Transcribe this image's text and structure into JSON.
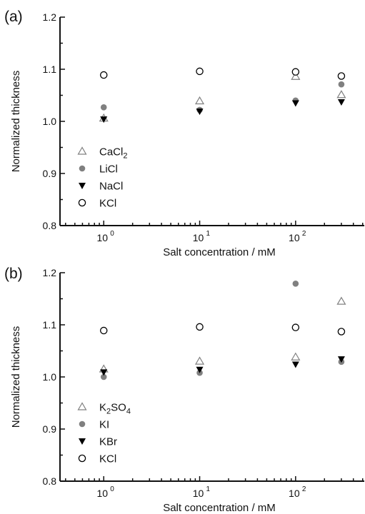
{
  "chart_data": [
    {
      "type": "scatter",
      "panel_label": "(a)",
      "xlabel": "Salt concentration / mM",
      "ylabel": "Normalized thickness",
      "xscale": "log",
      "xlim": [
        0.35,
        520
      ],
      "ylim": [
        0.8,
        1.2
      ],
      "x_ticks": [
        {
          "value": 1,
          "base": "10",
          "exp": "0"
        },
        {
          "value": 10,
          "base": "10",
          "exp": "1"
        },
        {
          "value": 100,
          "base": "10",
          "exp": "2"
        }
      ],
      "y_ticks": [
        "0.8",
        "0.9",
        "1.0",
        "1.1",
        "1.2"
      ],
      "grid": false,
      "legend_position": "bottom-left",
      "series": [
        {
          "name": "CaCl2",
          "name_main": "CaCl",
          "name_sub": "2",
          "marker": "triangle-up-open",
          "color": "#808080",
          "x": [
            1,
            10,
            100,
            300
          ],
          "y": [
            1.006,
            1.039,
            1.086,
            1.051
          ]
        },
        {
          "name": "LiCl",
          "name_main": "LiCl",
          "name_sub": "",
          "marker": "circle-filled",
          "color": "#808080",
          "x": [
            1,
            10,
            100,
            300
          ],
          "y": [
            1.027,
            1.022,
            1.04,
            1.071
          ]
        },
        {
          "name": "NaCl",
          "name_main": "NaCl",
          "name_sub": "",
          "marker": "triangle-down-filled",
          "color": "#000000",
          "x": [
            1,
            10,
            100,
            300
          ],
          "y": [
            1.004,
            1.019,
            1.035,
            1.037
          ]
        },
        {
          "name": "KCl",
          "name_main": "KCl",
          "name_sub": "",
          "marker": "circle-open",
          "color": "#000000",
          "x": [
            1,
            10,
            100,
            300
          ],
          "y": [
            1.089,
            1.096,
            1.095,
            1.087
          ]
        }
      ]
    },
    {
      "type": "scatter",
      "panel_label": "(b)",
      "xlabel": "Salt concentration / mM",
      "ylabel": "Normalized thickness",
      "xscale": "log",
      "xlim": [
        0.35,
        520
      ],
      "ylim": [
        0.8,
        1.2
      ],
      "x_ticks": [
        {
          "value": 1,
          "base": "10",
          "exp": "0"
        },
        {
          "value": 10,
          "base": "10",
          "exp": "1"
        },
        {
          "value": 100,
          "base": "10",
          "exp": "2"
        }
      ],
      "y_ticks": [
        "0.8",
        "0.9",
        "1.0",
        "1.1",
        "1.2"
      ],
      "grid": false,
      "legend_position": "bottom-left",
      "series": [
        {
          "name": "K2SO4",
          "name_main": "K",
          "name_sub": "2",
          "name_after": "SO",
          "name_sub2": "4",
          "marker": "triangle-up-open",
          "color": "#808080",
          "x": [
            1,
            10,
            100,
            300
          ],
          "y": [
            1.015,
            1.03,
            1.038,
            1.145
          ]
        },
        {
          "name": "KI",
          "name_main": "KI",
          "name_sub": "",
          "marker": "circle-filled",
          "color": "#808080",
          "x": [
            1,
            10,
            100,
            300
          ],
          "y": [
            1.0,
            1.008,
            1.179,
            1.029
          ]
        },
        {
          "name": "KBr",
          "name_main": "KBr",
          "name_sub": "",
          "marker": "triangle-down-filled",
          "color": "#000000",
          "x": [
            1,
            10,
            100,
            300
          ],
          "y": [
            1.009,
            1.014,
            1.024,
            1.034
          ]
        },
        {
          "name": "KCl",
          "name_main": "KCl",
          "name_sub": "",
          "marker": "circle-open",
          "color": "#000000",
          "x": [
            1,
            10,
            100,
            300
          ],
          "y": [
            1.089,
            1.096,
            1.095,
            1.087
          ]
        }
      ]
    }
  ]
}
